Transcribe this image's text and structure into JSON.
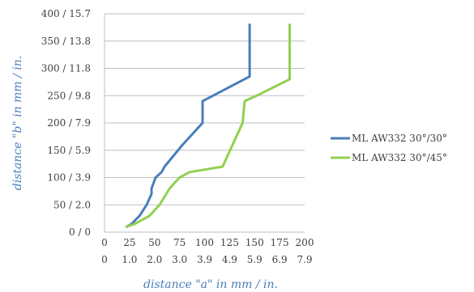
{
  "chart_data": {
    "type": "line",
    "xlabel": "distance \"a\" in mm / in.",
    "ylabel": "distance \"b\" in mm / in.",
    "xlim": [
      0,
      200
    ],
    "ylim": [
      0,
      400
    ],
    "x_ticks": [
      0,
      25,
      50,
      75,
      100,
      125,
      150,
      175,
      200
    ],
    "x_tick_labels": [
      "0",
      "25",
      "50",
      "75",
      "100",
      "125",
      "150",
      "175",
      "200"
    ],
    "x_tick_labels_in": [
      "0",
      "1.0",
      "2.0",
      "3.0",
      "3.9",
      "4.9",
      "5.9",
      "6.9",
      "7.9"
    ],
    "y_ticks": [
      0,
      50,
      100,
      150,
      200,
      250,
      300,
      350,
      400
    ],
    "y_tick_labels": [
      "0 / 0",
      "50 / 2.0",
      "100 / 3.9",
      "150 / 5.9",
      "200 / 7.9",
      "250 / 9.8",
      "300 / 11.8",
      "350 / 13.8",
      "400 / 15.7"
    ],
    "grid": "horizontal",
    "legend_position": "right",
    "series": [
      {
        "name": "ML AW332 30°/30°",
        "color": "#4a7ebb",
        "x": [
          22,
          27,
          35,
          42,
          47,
          47,
          51,
          57,
          60,
          78,
          98,
          98,
          145,
          145
        ],
        "y": [
          10,
          15,
          30,
          50,
          70,
          80,
          100,
          110,
          120,
          160,
          200,
          240,
          285,
          380
        ]
      },
      {
        "name": "ML AW332 30°/45°",
        "color": "#92d050",
        "x": [
          22,
          30,
          45,
          55,
          60,
          65,
          70,
          75,
          85,
          118,
          138,
          140,
          152,
          185,
          185
        ],
        "y": [
          10,
          15,
          30,
          50,
          65,
          80,
          90,
          100,
          110,
          120,
          200,
          240,
          250,
          280,
          380
        ]
      }
    ]
  }
}
